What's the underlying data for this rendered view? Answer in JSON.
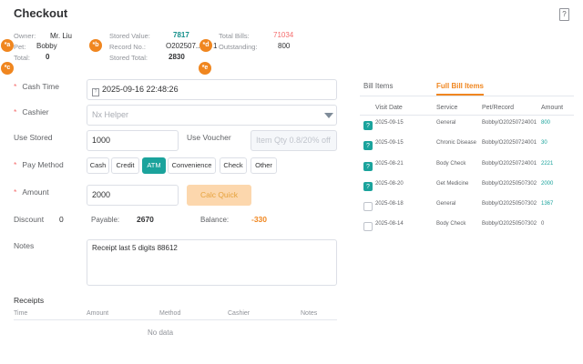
{
  "header": {
    "title": "Checkout",
    "help_icon": "?"
  },
  "info": {
    "owner_label": "Owner:",
    "owner_value": "Mr. Liu",
    "pet_label": "Pet:",
    "pet_value": "Bobby",
    "total_label": "Total:",
    "total_value": "0",
    "stored_value_label": "Stored Value:",
    "stored_value": "7817",
    "record_no_label": "Record No.:",
    "record_no_value": "O202507...",
    "stored_total_label": "Stored Total:",
    "stored_total_value": "2830",
    "total_bills_label": "Total Bills:",
    "total_bills_value": "71034",
    "outstanding_label": "Outstanding:",
    "outstanding_value": "800",
    "outstanding_prefix": "1"
  },
  "badges": [
    "*a",
    "*b",
    "*c",
    "*d",
    "*e"
  ],
  "form": {
    "required_mark": "*",
    "cash_time_label": "Cash Time",
    "cash_time_value": "2025-09-16 22:48:26",
    "cash_time_icon": "calendar-icon",
    "cashier_label": "Cashier",
    "cashier_placeholder": "Nx Helper",
    "use_stored_label": "Use Stored",
    "use_stored_value": "1000",
    "use_voucher_label": "Use Voucher",
    "use_voucher_placeholder": "Item Qty 0.8/20% off",
    "pay_method_label": "Pay Method",
    "pay_methods": [
      "Cash",
      "Credit",
      "ATM",
      "Convenience",
      "Check",
      "Other"
    ],
    "selected_pay_method": "ATM",
    "amount_label": "Amount",
    "amount_value": "2000",
    "calc_quick_label": "Calc Quick",
    "discount_label": "Discount",
    "discount_value": "0",
    "payable_label": "Payable:",
    "payable_value": "2670",
    "balance_label": "Balance:",
    "balance_value": "-330",
    "notes_label": "Notes",
    "notes_value": "Receipt last 5 digits 88612"
  },
  "receipts": {
    "title": "Receipts",
    "columns": [
      "Time",
      "Amount",
      "Method",
      "Cashier",
      "Notes"
    ],
    "empty_text": "No data"
  },
  "bill_panel": {
    "tabs": [
      "Bill Items",
      "Full Bill Items"
    ],
    "active_tab": "Full Bill Items",
    "columns": [
      "Visit Date",
      "Service",
      "Pet/Record",
      "Amount"
    ],
    "rows": [
      {
        "checked": true,
        "date": "2025-09-15",
        "service": "General",
        "record": "Bobby/O20250724001",
        "amount": "800"
      },
      {
        "checked": true,
        "date": "2025-09-15",
        "service": "Chronic Disease",
        "record": "Bobby/O20250724001",
        "amount": "30"
      },
      {
        "checked": true,
        "date": "2025-08-21",
        "service": "Body Check",
        "record": "Bobby/O20250724001",
        "amount": "2221"
      },
      {
        "checked": true,
        "date": "2025-08-20",
        "service": "Get Medicine",
        "record": "Bobby/O20250507302",
        "amount": "2000"
      },
      {
        "checked": false,
        "date": "2025-08-18",
        "service": "General",
        "record": "Bobby/O20250507302",
        "amount": "1367"
      },
      {
        "checked": false,
        "date": "2025-08-14",
        "service": "Body Check",
        "record": "Bobby/O20250507302",
        "amount": "0"
      }
    ]
  },
  "colors": {
    "accent_teal": "#1ba39c",
    "accent_orange": "#f0861f",
    "danger_red": "#f56c6c"
  }
}
